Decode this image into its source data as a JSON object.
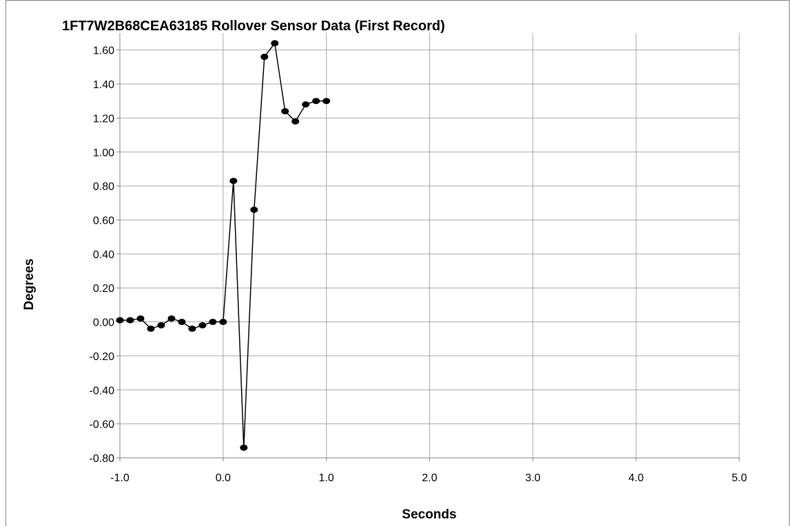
{
  "chart_data": {
    "type": "line",
    "title": "1FT7W2B68CEA63185  Rollover Sensor Data (First Record)",
    "xlabel": "Seconds",
    "ylabel": "Degrees",
    "xlim": [
      -1.0,
      5.0
    ],
    "ylim": [
      -0.8,
      1.7
    ],
    "x_ticks": [
      -1.0,
      0.0,
      1.0,
      2.0,
      3.0,
      4.0,
      5.0
    ],
    "x_tick_labels": [
      "-1.0",
      "0.0",
      "1.0",
      "2.0",
      "3.0",
      "4.0",
      "5.0"
    ],
    "y_ticks": [
      -0.8,
      -0.6,
      -0.4,
      -0.2,
      0.0,
      0.2,
      0.4,
      0.6,
      0.8,
      1.0,
      1.2,
      1.4,
      1.6
    ],
    "y_tick_labels": [
      "-0.80",
      "-0.60",
      "-0.40",
      "-0.20",
      "0.00",
      "0.20",
      "0.40",
      "0.60",
      "0.80",
      "1.00",
      "1.20",
      "1.40",
      "1.60"
    ],
    "grid": true,
    "legend": "none",
    "series": [
      {
        "color": "#000000",
        "marker": "circle",
        "x": [
          -1.0,
          -0.9,
          -0.8,
          -0.7,
          -0.6,
          -0.5,
          -0.4,
          -0.3,
          -0.2,
          -0.1,
          0.0,
          0.1,
          0.2,
          0.3,
          0.4,
          0.5,
          0.6,
          0.7,
          0.8,
          0.9,
          1.0
        ],
        "y": [
          0.01,
          0.01,
          0.02,
          -0.04,
          -0.02,
          0.02,
          0.0,
          -0.04,
          -0.02,
          0.0,
          0.0,
          0.83,
          -0.74,
          0.66,
          1.56,
          1.64,
          1.24,
          1.18,
          1.28,
          1.3,
          1.3
        ]
      }
    ]
  }
}
